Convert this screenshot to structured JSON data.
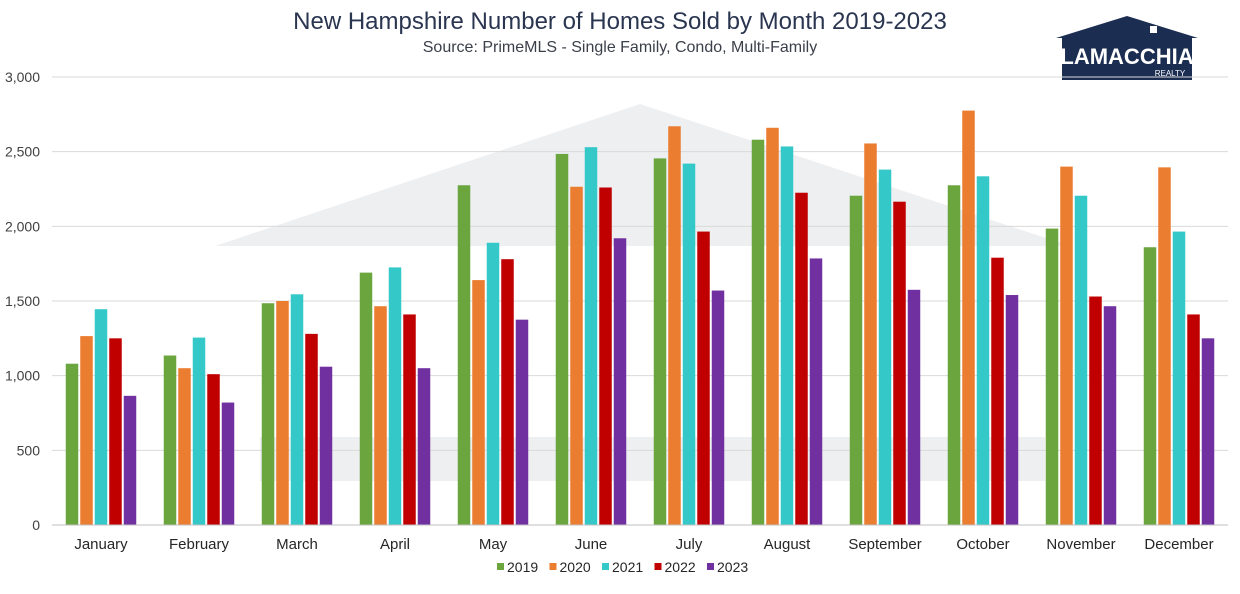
{
  "colors": {
    "2019": "#6aa53e",
    "2020": "#ea7d30",
    "2021": "#35c8c9",
    "2022": "#c00000",
    "2023": "#7030a0",
    "grid": "#d9d9d9",
    "axis_text": "#404040",
    "title": "#2a3550",
    "logo_navy": "#1b2e52"
  },
  "logo": {
    "brand": "LAMACCHIA",
    "sub": "REALTY"
  },
  "chart_data": {
    "type": "bar",
    "title": "New Hampshire Number of Homes Sold by Month 2019-2023",
    "subtitle": "Source: PrimeMLS - Single Family, Condo, Multi-Family",
    "xlabel": "",
    "ylabel": "",
    "ylim": [
      0,
      3000
    ],
    "yticks": [
      0,
      500,
      1000,
      1500,
      2000,
      2500,
      3000
    ],
    "ytick_labels": [
      "0",
      "500",
      "1,000",
      "1,500",
      "2,000",
      "2,500",
      "3,000"
    ],
    "grid": true,
    "legend_position": "bottom",
    "categories": [
      "January",
      "February",
      "March",
      "April",
      "May",
      "June",
      "July",
      "August",
      "September",
      "October",
      "November",
      "December"
    ],
    "series": [
      {
        "name": "2019",
        "values": [
          1080,
          1135,
          1485,
          1690,
          2275,
          2485,
          2455,
          2580,
          2205,
          2275,
          1985,
          1860
        ]
      },
      {
        "name": "2020",
        "values": [
          1265,
          1050,
          1500,
          1465,
          1640,
          2265,
          2670,
          2660,
          2555,
          2775,
          2400,
          2395
        ]
      },
      {
        "name": "2021",
        "values": [
          1445,
          1255,
          1545,
          1725,
          1890,
          2530,
          2420,
          2535,
          2380,
          2335,
          2205,
          1965
        ]
      },
      {
        "name": "2022",
        "values": [
          1250,
          1010,
          1280,
          1410,
          1780,
          2260,
          1965,
          2225,
          2165,
          1790,
          1530,
          1410
        ]
      },
      {
        "name": "2023",
        "values": [
          865,
          820,
          1060,
          1050,
          1375,
          1920,
          1570,
          1785,
          1575,
          1540,
          1465,
          1250
        ]
      }
    ]
  }
}
